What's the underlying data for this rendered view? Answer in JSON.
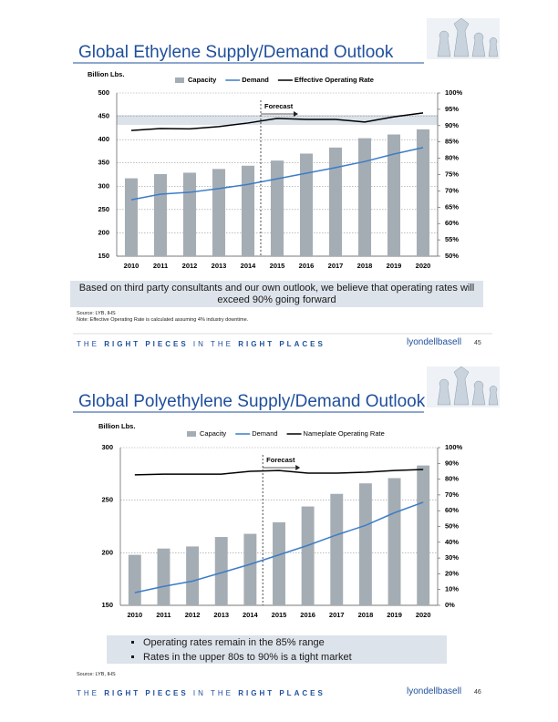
{
  "chart_data": [
    {
      "type": "bar",
      "title": "Global Ethylene Supply/Demand Outlook",
      "y_label": "Billion Lbs.",
      "categories": [
        "2010",
        "2011",
        "2012",
        "2013",
        "2014",
        "2015",
        "2016",
        "2017",
        "2018",
        "2019",
        "2020"
      ],
      "series": [
        {
          "name": "Capacity",
          "type": "bar",
          "color": "#a5adb4",
          "values": [
            317,
            326,
            329,
            337,
            344,
            355,
            370,
            383,
            403,
            411,
            422
          ]
        },
        {
          "name": "Demand",
          "type": "line",
          "color": "#3b7dc8",
          "values": [
            271,
            283,
            287,
            295,
            304,
            316,
            328,
            340,
            353,
            369,
            383
          ]
        },
        {
          "name": "Effective Operating Rate",
          "type": "line",
          "axis": "y2",
          "color": "#000000",
          "values": [
            88.5,
            89.1,
            89,
            89.7,
            90.8,
            92.2,
            91.9,
            91.9,
            91.1,
            92.7,
            93.9
          ]
        }
      ],
      "ylim": [
        150,
        500
      ],
      "yticks": [
        150,
        200,
        250,
        300,
        350,
        400,
        450,
        500
      ],
      "y2lim": [
        50,
        100
      ],
      "y2ticks": [
        {
          "value": 50,
          "label": "50%"
        },
        {
          "value": 55,
          "label": "55%"
        },
        {
          "value": 60,
          "label": "60%"
        },
        {
          "value": 65,
          "label": "65%"
        },
        {
          "value": 70,
          "label": "70%"
        },
        {
          "value": 75,
          "label": "75%"
        },
        {
          "value": 80,
          "label": "80%"
        },
        {
          "value": 85,
          "label": "85%"
        },
        {
          "value": 90,
          "label": "90%"
        },
        {
          "value": 95,
          "label": "95%"
        },
        {
          "value": 100,
          "label": "100%"
        }
      ],
      "grid": true,
      "legend": "top",
      "bold_labels": true,
      "annotation": "Forecast"
    },
    {
      "type": "bar",
      "title": "Global Polyethylene Supply/Demand Outlook",
      "y_label": "Billion Lbs.",
      "categories": [
        "2010",
        "2011",
        "2012",
        "2013",
        "2014",
        "2015",
        "2016",
        "2017",
        "2018",
        "2019",
        "2020"
      ],
      "series": [
        {
          "name": "Capacity",
          "type": "bar",
          "color": "#a5adb4",
          "values": [
            198,
            204,
            206,
            215,
            218,
            229,
            244,
            256,
            266,
            271,
            283
          ]
        },
        {
          "name": "Demand",
          "type": "line",
          "color": "#3b7dc8",
          "values": [
            162,
            168,
            173,
            181,
            189,
            198,
            207,
            217,
            226,
            238,
            248
          ]
        },
        {
          "name": "Nameplate Operating Rate",
          "type": "line",
          "axis": "y2",
          "color": "#000000",
          "values": [
            82.7,
            83.2,
            83.2,
            83.2,
            85,
            85.5,
            83.8,
            83.8,
            84.4,
            85.5,
            86.1
          ]
        }
      ],
      "ylim": [
        150,
        300
      ],
      "yticks": [
        150,
        200,
        250,
        300
      ],
      "y2lim": [
        0,
        100
      ],
      "y2ticks": [
        {
          "value": 0,
          "label": "0%"
        },
        {
          "value": 10,
          "label": "10%"
        },
        {
          "value": 20,
          "label": "20%"
        },
        {
          "value": 30,
          "label": "30%"
        },
        {
          "value": 40,
          "label": "40%"
        },
        {
          "value": 50,
          "label": "50%"
        },
        {
          "value": 60,
          "label": "60%"
        },
        {
          "value": 70,
          "label": "70%"
        },
        {
          "value": 80,
          "label": "80%"
        },
        {
          "value": 90,
          "label": "90%"
        },
        {
          "value": 100,
          "label": "100%"
        }
      ],
      "grid": true,
      "legend": "top",
      "bold_labels": false,
      "annotation": "Forecast"
    }
  ],
  "slides": [
    {
      "callout": "Based on third party consultants and our own outlook, we believe that operating rates will exceed 90% going forward",
      "source": "Source: LYB, IHS",
      "note": "Note: Effective Operating Rate is calculated assuming 4% industry downtime.",
      "page": "45"
    },
    {
      "bullets": [
        "Operating rates remain in the 85% range",
        "Rates in the upper 80s to 90% is a tight market"
      ],
      "source": "Source: LYB, IHS",
      "page": "46"
    }
  ],
  "footer": {
    "tagline": [
      "THE",
      "RIGHT PIECES",
      "IN THE",
      "RIGHT PLACES"
    ],
    "logo": "lyondellbasell"
  }
}
